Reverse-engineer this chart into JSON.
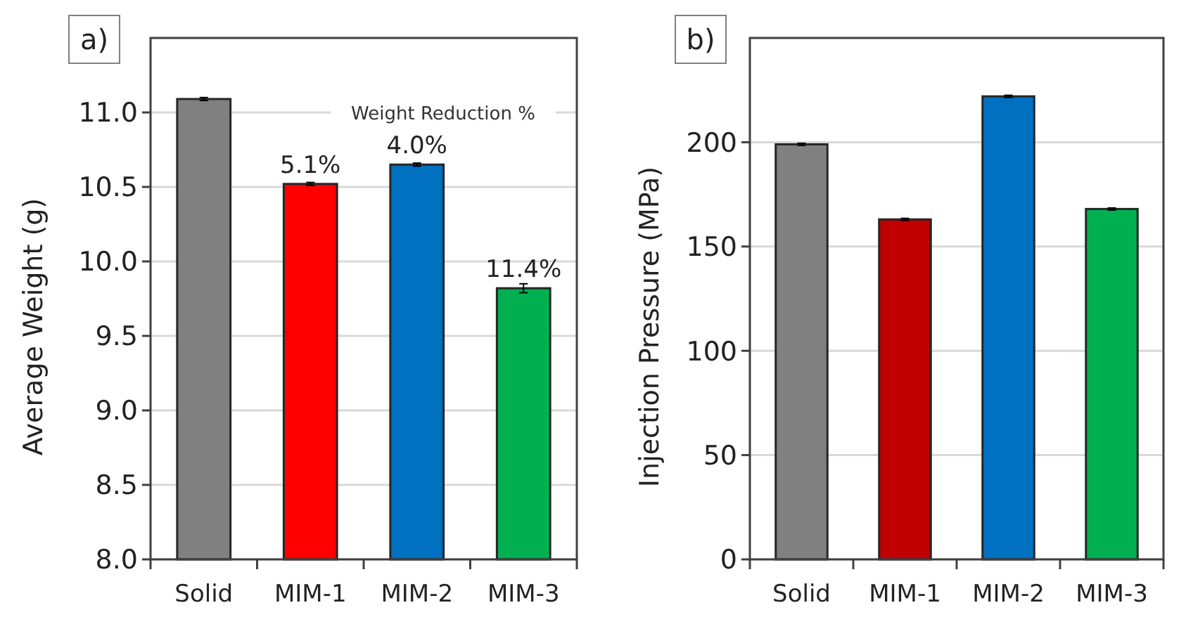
{
  "chart_data": [
    {
      "type": "bar",
      "title": "a)",
      "ylabel": "Average Weight (g)",
      "categories": [
        "Solid",
        "MIM-1",
        "MIM-2",
        "MIM-3"
      ],
      "values": [
        11.09,
        10.52,
        10.65,
        9.82
      ],
      "colors": [
        "#808080",
        "#ff0000",
        "#0070c0",
        "#00b050"
      ],
      "errors": [
        0.01,
        0.01,
        0.01,
        0.03
      ],
      "annotations": [
        "Weight Reduction %",
        {
          "text": "5.1%",
          "x": "MIM-1",
          "y": 10.52
        },
        {
          "text": "4.0%",
          "x": "MIM-2",
          "y": 10.65
        },
        {
          "text": "11.4%",
          "x": "MIM-3",
          "y": 9.82
        }
      ],
      "ylim": [
        8,
        11.5
      ],
      "yticks": [
        {
          "value": 8,
          "label": "8.0"
        },
        {
          "value": 8.5,
          "label": "8.5"
        },
        {
          "value": 9,
          "label": "9.0"
        },
        {
          "value": 9.5,
          "label": "9.5"
        },
        {
          "value": 10,
          "label": "10.0"
        },
        {
          "value": 10.5,
          "label": "10.5"
        },
        {
          "value": 11,
          "label": "11.0"
        }
      ],
      "grid": "y"
    },
    {
      "type": "bar",
      "title": "b)",
      "ylabel": "Injection Pressure (MPa)",
      "categories": [
        "Solid",
        "MIM-1",
        "MIM-2",
        "MIM-3"
      ],
      "values": [
        199,
        163,
        222,
        168
      ],
      "colors": [
        "#808080",
        "#c00000",
        "#0070c0",
        "#00b050"
      ],
      "errors": [
        0.5,
        0.5,
        0.5,
        0.5
      ],
      "ylim": [
        0,
        250
      ],
      "yticks": [
        0,
        50,
        100,
        150,
        200
      ],
      "grid": "y"
    }
  ]
}
